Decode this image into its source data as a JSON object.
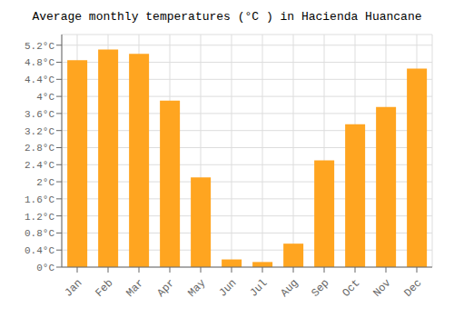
{
  "chart_data": {
    "type": "bar",
    "title": "Average monthly temperatures (°C ) in Hacienda Huancane",
    "categories": [
      "Jan",
      "Feb",
      "Mar",
      "Apr",
      "May",
      "Jun",
      "Jul",
      "Aug",
      "Sep",
      "Oct",
      "Nov",
      "Dec"
    ],
    "values": [
      4.85,
      5.1,
      5.0,
      3.9,
      2.1,
      0.18,
      0.12,
      0.55,
      2.5,
      3.35,
      3.75,
      4.65
    ],
    "color": "#FFA520",
    "ylim": [
      0,
      5.45
    ],
    "yticks": [
      {
        "value": 0,
        "label": "0°C"
      },
      {
        "value": 0.4,
        "label": "0.4°C"
      },
      {
        "value": 0.8,
        "label": "0.8°C"
      },
      {
        "value": 1.2,
        "label": "1.2°C"
      },
      {
        "value": 1.6,
        "label": "1.6°C"
      },
      {
        "value": 2.0,
        "label": "2°C"
      },
      {
        "value": 2.4,
        "label": "2.4°C"
      },
      {
        "value": 2.8,
        "label": "2.8°C"
      },
      {
        "value": 3.2,
        "label": "3.2°C"
      },
      {
        "value": 3.6,
        "label": "3.6°C"
      },
      {
        "value": 4.0,
        "label": "4°C"
      },
      {
        "value": 4.4,
        "label": "4.4°C"
      },
      {
        "value": 4.8,
        "label": "4.8°C"
      },
      {
        "value": 5.2,
        "label": "5.2°C"
      }
    ],
    "grid": true
  }
}
